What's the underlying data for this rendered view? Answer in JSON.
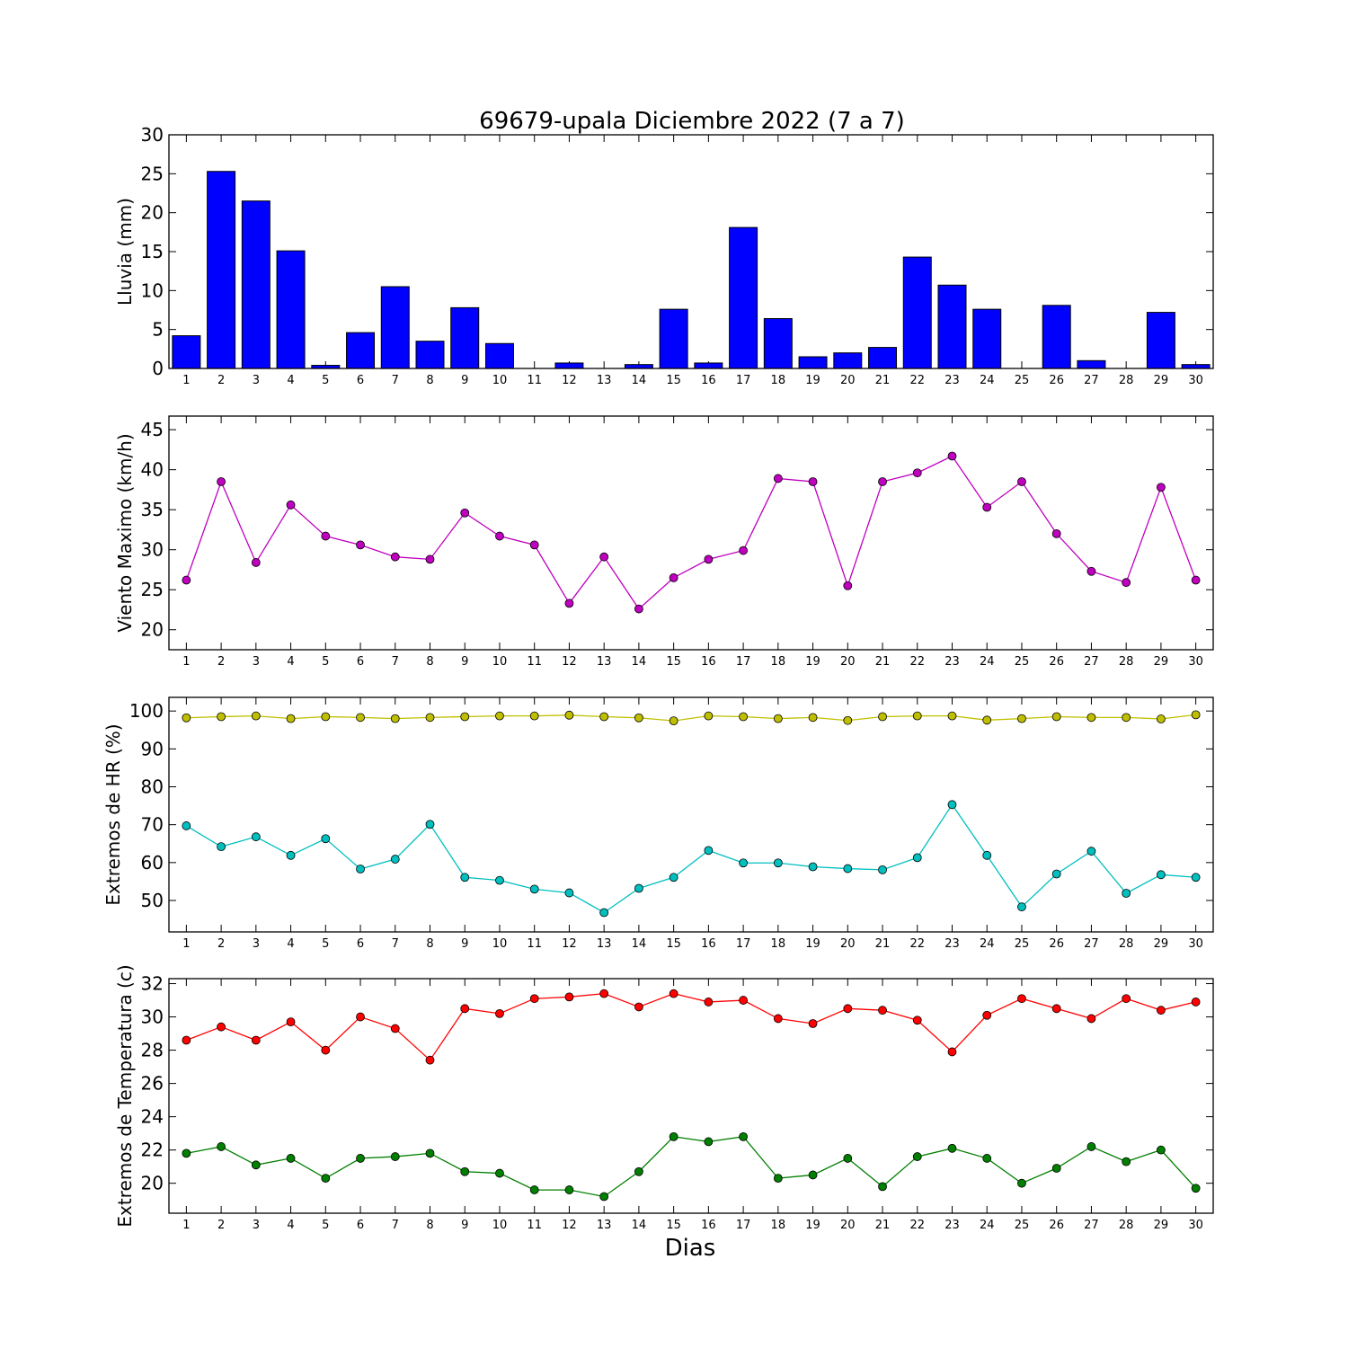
{
  "figure": {
    "title": "69679-upala Diciembre 2022  (7 a 7)",
    "xlabel": "Dias"
  },
  "chart_data": [
    {
      "type": "bar",
      "ylabel": "Lluvia (mm)",
      "ylim": [
        0,
        30
      ],
      "yticks": [
        0,
        5,
        10,
        15,
        20,
        25,
        30
      ],
      "categories": [
        "1",
        "2",
        "3",
        "4",
        "5",
        "6",
        "7",
        "8",
        "9",
        "10",
        "11",
        "12",
        "13",
        "14",
        "15",
        "16",
        "17",
        "18",
        "19",
        "20",
        "21",
        "22",
        "23",
        "24",
        "25",
        "26",
        "27",
        "28",
        "29",
        "30"
      ],
      "color": "#0000ff",
      "values": [
        4.2,
        25.3,
        21.5,
        15.1,
        0.4,
        4.6,
        10.5,
        3.5,
        7.8,
        3.2,
        0.0,
        0.7,
        0.0,
        0.5,
        7.6,
        0.7,
        18.1,
        6.4,
        1.5,
        2.0,
        2.7,
        14.3,
        10.7,
        7.6,
        0.0,
        8.1,
        1.0,
        0.0,
        7.2,
        0.5
      ]
    },
    {
      "type": "line",
      "ylabel": "Viento Maximo (km/h)",
      "ylim": [
        17.5,
        46.7
      ],
      "yticks": [
        20,
        25,
        30,
        35,
        40,
        45
      ],
      "x": [
        1,
        2,
        3,
        4,
        5,
        6,
        7,
        8,
        9,
        10,
        11,
        12,
        13,
        14,
        15,
        16,
        17,
        18,
        19,
        20,
        21,
        22,
        23,
        24,
        25,
        26,
        27,
        28,
        29,
        30
      ],
      "series": [
        {
          "color": "#bf00bf",
          "values": [
            26.2,
            38.5,
            28.4,
            35.6,
            31.7,
            30.6,
            29.1,
            28.8,
            34.6,
            31.7,
            30.6,
            23.3,
            29.1,
            22.6,
            26.5,
            28.8,
            29.9,
            38.9,
            38.5,
            25.5,
            38.5,
            39.6,
            41.7,
            35.3,
            38.5,
            32.0,
            27.3,
            25.9,
            37.8,
            26.2
          ]
        }
      ]
    },
    {
      "type": "line",
      "ylabel": "Extremos de HR (%)",
      "ylim": [
        41.7,
        103.6
      ],
      "yticks": [
        50,
        60,
        70,
        80,
        90,
        100
      ],
      "x": [
        1,
        2,
        3,
        4,
        5,
        6,
        7,
        8,
        9,
        10,
        11,
        12,
        13,
        14,
        15,
        16,
        17,
        18,
        19,
        20,
        21,
        22,
        23,
        24,
        25,
        26,
        27,
        28,
        29,
        30
      ],
      "series": [
        {
          "color": "#bfbf00",
          "values": [
            98.2,
            98.5,
            98.7,
            98.0,
            98.5,
            98.3,
            98.0,
            98.3,
            98.5,
            98.7,
            98.7,
            98.9,
            98.5,
            98.2,
            97.4,
            98.7,
            98.5,
            98.0,
            98.3,
            97.5,
            98.5,
            98.7,
            98.7,
            97.6,
            98.0,
            98.5,
            98.3,
            98.3,
            97.9,
            99.0
          ]
        },
        {
          "color": "#00bfbf",
          "values": [
            69.7,
            64.2,
            66.8,
            61.9,
            66.3,
            58.3,
            60.9,
            70.1,
            56.1,
            55.3,
            53.0,
            52.0,
            46.8,
            53.2,
            56.1,
            63.2,
            59.9,
            59.9,
            58.9,
            58.4,
            58.1,
            61.3,
            75.3,
            61.9,
            48.3,
            57.0,
            63.0,
            51.9,
            56.8,
            56.1
          ]
        }
      ]
    },
    {
      "type": "line",
      "ylabel": "Extremos de Temperatura (c)",
      "ylim": [
        18.2,
        32.3
      ],
      "yticks": [
        20,
        22,
        24,
        26,
        28,
        30,
        32
      ],
      "x": [
        1,
        2,
        3,
        4,
        5,
        6,
        7,
        8,
        9,
        10,
        11,
        12,
        13,
        14,
        15,
        16,
        17,
        18,
        19,
        20,
        21,
        22,
        23,
        24,
        25,
        26,
        27,
        28,
        29,
        30
      ],
      "series": [
        {
          "color": "#ff0000",
          "values": [
            28.6,
            29.4,
            28.6,
            29.7,
            28.0,
            30.0,
            29.3,
            27.4,
            30.5,
            30.2,
            31.1,
            31.2,
            31.4,
            30.6,
            31.4,
            30.9,
            31.0,
            29.9,
            29.6,
            30.5,
            30.4,
            29.8,
            27.9,
            30.1,
            31.1,
            30.5,
            29.9,
            31.1,
            30.4,
            30.9
          ]
        },
        {
          "color": "#007f00",
          "values": [
            21.8,
            22.2,
            21.1,
            21.5,
            20.3,
            21.5,
            21.6,
            21.8,
            20.7,
            20.6,
            19.6,
            19.6,
            19.2,
            20.7,
            22.8,
            22.5,
            22.8,
            20.3,
            20.5,
            21.5,
            19.8,
            21.6,
            22.1,
            21.5,
            20.0,
            20.9,
            22.2,
            21.3,
            22.0,
            19.7
          ]
        }
      ]
    }
  ]
}
